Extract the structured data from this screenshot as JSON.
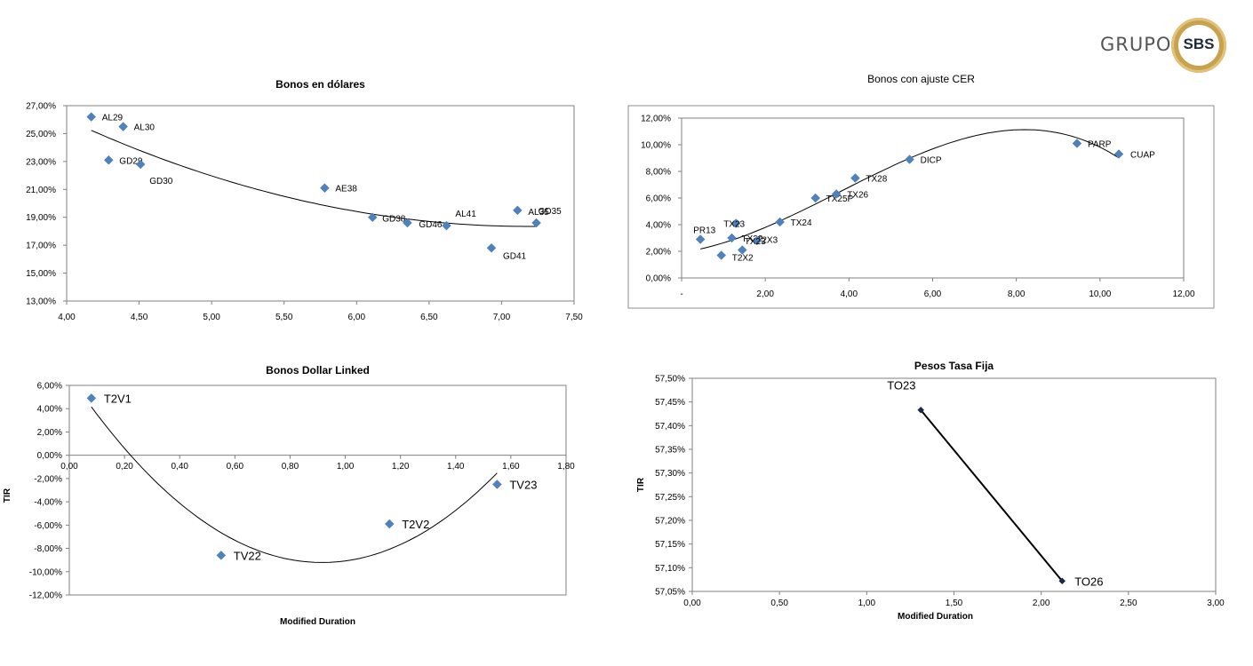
{
  "logo": {
    "grupo": "GRUPO",
    "sbs": "SBS"
  },
  "chart_data": [
    {
      "type": "scatter",
      "title": "Bonos  en dólares",
      "xlabel": "",
      "ylabel": "",
      "xlim": [
        4.0,
        7.5
      ],
      "ylim": [
        13.0,
        27.0
      ],
      "xticks": [
        "4,00",
        "4,50",
        "5,00",
        "5,50",
        "6,00",
        "6,50",
        "7,00",
        "7,50"
      ],
      "yticks": [
        "13,00%",
        "15,00%",
        "17,00%",
        "19,00%",
        "21,00%",
        "23,00%",
        "25,00%",
        "27,00%"
      ],
      "points": [
        {
          "label": "AL29",
          "x": 4.17,
          "y": 26.2
        },
        {
          "label": "AL30",
          "x": 4.39,
          "y": 25.5
        },
        {
          "label": "GD29",
          "x": 4.29,
          "y": 23.1
        },
        {
          "label": "GD30",
          "x": 4.51,
          "y": 22.8
        },
        {
          "label": "AE38",
          "x": 5.78,
          "y": 21.1
        },
        {
          "label": "GD38",
          "x": 6.11,
          "y": 19.0
        },
        {
          "label": "GD46",
          "x": 6.35,
          "y": 18.6
        },
        {
          "label": "AL41",
          "x": 6.62,
          "y": 18.4
        },
        {
          "label": "GD41",
          "x": 6.93,
          "y": 16.8
        },
        {
          "label": "AL35",
          "x": 7.11,
          "y": 19.5
        },
        {
          "label": "GD35",
          "x": 7.24,
          "y": 18.6
        }
      ],
      "trend": "polynomial",
      "series_color": "#4f81bd"
    },
    {
      "type": "scatter",
      "title": "Bonos con ajuste CER",
      "xlabel": "",
      "ylabel": "",
      "xlim": [
        0,
        12
      ],
      "ylim": [
        0,
        12
      ],
      "xticks": [
        "-",
        "2,00",
        "4,00",
        "6,00",
        "8,00",
        "10,00",
        "12,00"
      ],
      "yticks": [
        "0,00%",
        "2,00%",
        "4,00%",
        "6,00%",
        "8,00%",
        "10,00%",
        "12,00%"
      ],
      "points": [
        {
          "label": "PR13",
          "x": 0.45,
          "y": 2.9
        },
        {
          "label": "TX22",
          "x": 1.2,
          "y": 3.0
        },
        {
          "label": "TX23",
          "x": 1.3,
          "y": 4.1
        },
        {
          "label": "T2X2",
          "x": 0.95,
          "y": 1.7
        },
        {
          "label": "T2X3",
          "x": 1.45,
          "y": 2.1
        },
        {
          "label": "TX23",
          "x": 1.8,
          "y": 2.8
        },
        {
          "label": "TX24",
          "x": 2.35,
          "y": 4.2
        },
        {
          "label": "TX25P",
          "x": 3.2,
          "y": 6.0
        },
        {
          "label": "TX26",
          "x": 3.7,
          "y": 6.3
        },
        {
          "label": "TX28",
          "x": 4.15,
          "y": 7.5
        },
        {
          "label": "DICP",
          "x": 5.45,
          "y": 8.9
        },
        {
          "label": "PARP",
          "x": 9.45,
          "y": 10.1
        },
        {
          "label": "CUAP",
          "x": 10.45,
          "y": 9.3
        }
      ],
      "trend": "polynomial",
      "series_color": "#4f81bd"
    },
    {
      "type": "scatter",
      "title": "Bonos Dollar Linked",
      "xlabel": "Modified Duration",
      "ylabel": "TIR",
      "xlim": [
        0,
        1.8
      ],
      "ylim": [
        -12,
        6
      ],
      "xticks": [
        "0,00",
        "0,20",
        "0,40",
        "0,60",
        "0,80",
        "1,00",
        "1,20",
        "1,40",
        "1,60",
        "1,80"
      ],
      "yticks": [
        "-12,00%",
        "-10,00%",
        "-8,00%",
        "-6,00%",
        "-4,00%",
        "-2,00%",
        "0,00%",
        "2,00%",
        "4,00%",
        "6,00%"
      ],
      "points": [
        {
          "label": "T2V1",
          "x": 0.08,
          "y": 4.9
        },
        {
          "label": "TV22",
          "x": 0.55,
          "y": -8.6
        },
        {
          "label": "T2V2",
          "x": 1.16,
          "y": -5.9
        },
        {
          "label": "TV23",
          "x": 1.55,
          "y": -2.5
        }
      ],
      "trend": "polynomial",
      "series_color": "#4f81bd"
    },
    {
      "type": "line",
      "title": "Pesos Tasa Fija",
      "xlabel": "Modified Duration",
      "ylabel": "TIR",
      "xlim": [
        0,
        3.0
      ],
      "ylim": [
        57.05,
        57.5
      ],
      "xticks": [
        "0,00",
        "0,50",
        "1,00",
        "1,50",
        "2,00",
        "2,50",
        "3,00"
      ],
      "yticks": [
        "57,05%",
        "57,10%",
        "57,15%",
        "57,20%",
        "57,25%",
        "57,30%",
        "57,35%",
        "57,40%",
        "57,45%",
        "57,50%"
      ],
      "points": [
        {
          "label": "TO23",
          "x": 1.31,
          "y": 57.433
        },
        {
          "label": "TO26",
          "x": 2.12,
          "y": 57.072
        }
      ],
      "series_color": "#1a2a4a"
    }
  ]
}
